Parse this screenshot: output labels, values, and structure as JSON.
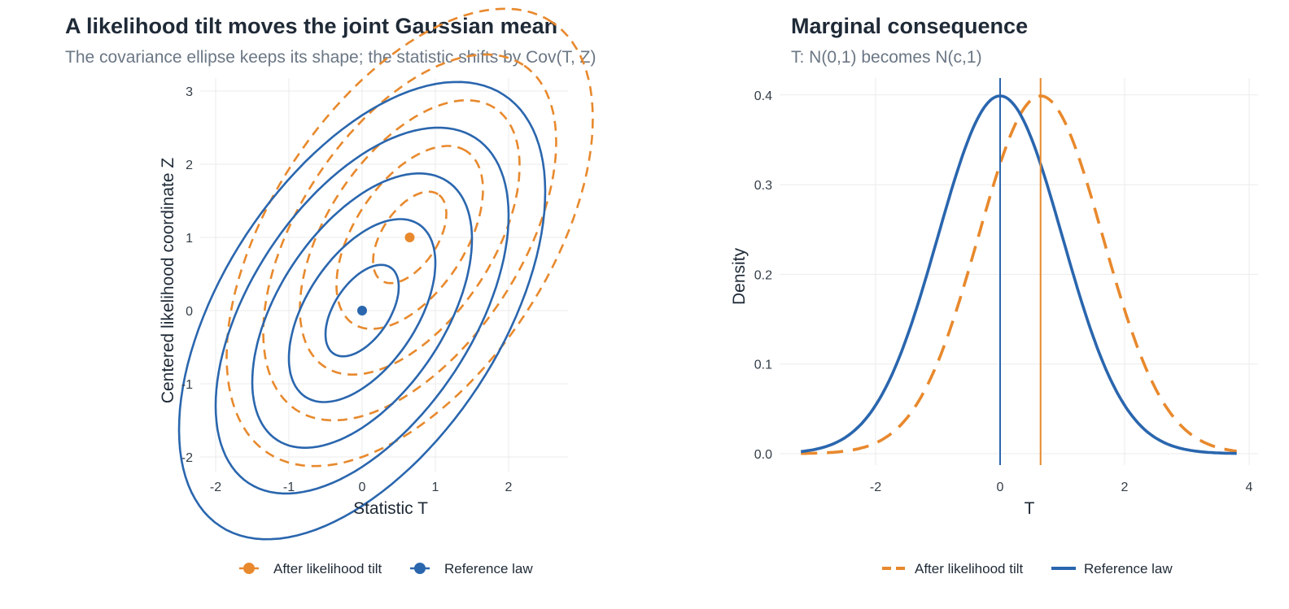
{
  "colors": {
    "tilt": "#E8892D",
    "reference": "#2A66AE"
  },
  "chart_data": [
    {
      "type": "contour",
      "title": "A likelihood tilt moves the joint Gaussian mean",
      "subtitle": "The covariance ellipse keeps its shape; the statistic shifts by Cov(T, Z)",
      "xlabel": "Statistic T",
      "ylabel": "Centered likelihood coordinate Z",
      "xlim": [
        -2.2,
        2.8
      ],
      "ylim": [
        -2.2,
        3.2
      ],
      "xticks": [
        -2,
        -1,
        0,
        1,
        2
      ],
      "yticks": [
        -2,
        -1,
        0,
        1,
        2,
        3
      ],
      "grid": true,
      "legend_position": "bottom",
      "cov": {
        "var_t": 1,
        "var_z": 1.5625,
        "cov_tz": 0.65
      },
      "contour_levels": [
        0.5,
        1,
        1.5,
        2,
        2.5
      ],
      "series": [
        {
          "name": "After likelihood tilt",
          "mean": [
            0.65,
            1.0
          ],
          "line": "dashed",
          "color_key": "tilt"
        },
        {
          "name": "Reference law",
          "mean": [
            0,
            0
          ],
          "line": "solid",
          "color_key": "reference"
        }
      ]
    },
    {
      "type": "line",
      "title": "Marginal consequence",
      "subtitle": "T: N(0,1) becomes N(c,1)",
      "xlabel": "T",
      "ylabel": "Density",
      "xlim": [
        -3.2,
        3.8
      ],
      "ylim": [
        0,
        0.4
      ],
      "xticks": [
        -2,
        0,
        2,
        4
      ],
      "yticks": [
        "0.0",
        "0.1",
        "0.2",
        "0.3",
        "0.4"
      ],
      "grid": true,
      "legend_position": "bottom",
      "series": [
        {
          "name": "After likelihood tilt",
          "distribution": "N(0.65,1)",
          "mean": 0.65,
          "sd": 1,
          "line": "dashed",
          "color_key": "tilt"
        },
        {
          "name": "Reference law",
          "distribution": "N(0,1)",
          "mean": 0,
          "sd": 1,
          "line": "solid",
          "color_key": "reference"
        }
      ],
      "vlines": [
        {
          "x": 0,
          "color_key": "reference"
        },
        {
          "x": 0.65,
          "color_key": "tilt"
        }
      ]
    }
  ]
}
